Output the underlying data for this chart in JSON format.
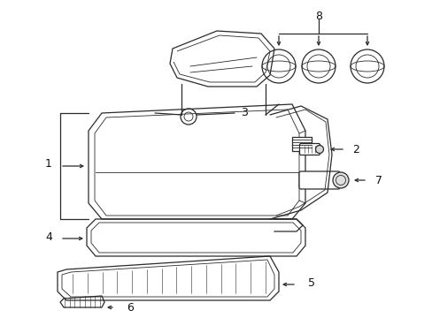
{
  "bg_color": "#ffffff",
  "line_color": "#2a2a2a",
  "text_color": "#111111",
  "fontsize": 9,
  "lw_main": 0.9,
  "lw_inner": 0.6
}
